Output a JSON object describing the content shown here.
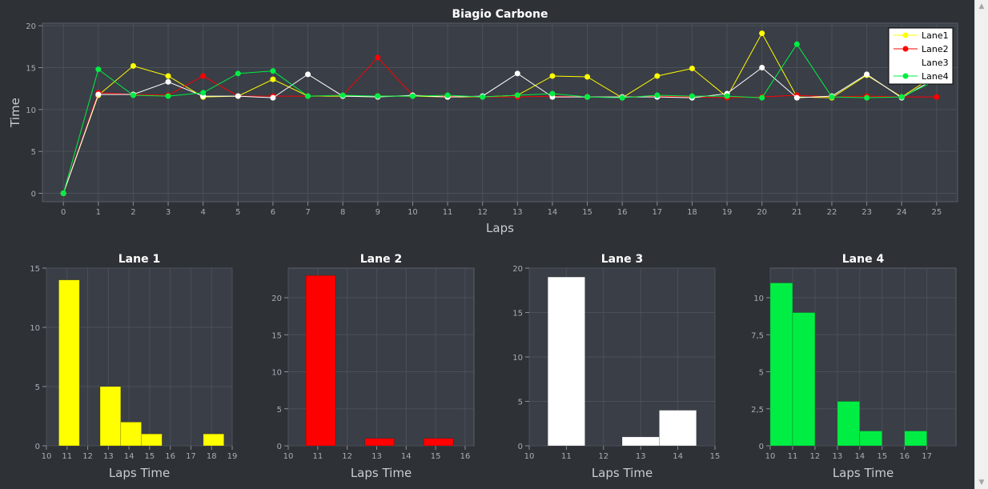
{
  "colors": {
    "lane1": "#ffff00",
    "lane2": "#ff0000",
    "lane3": "#ffffff",
    "lane4": "#00ee44",
    "background": "#2e3136",
    "plot_area": "#3a3e46"
  },
  "main_chart": {
    "title": "Biagio Carbone",
    "xlabel": "Laps",
    "ylabel": "Time",
    "legend": [
      "Lane1",
      "Lane2",
      "Lane3",
      "Lane4"
    ]
  },
  "histograms": [
    {
      "title": "Lane 1",
      "xlabel": "Laps Time"
    },
    {
      "title": "Lane 2",
      "xlabel": "Laps Time"
    },
    {
      "title": "Lane 3",
      "xlabel": "Laps Time"
    },
    {
      "title": "Lane 4",
      "xlabel": "Laps Time"
    }
  ],
  "chart_data": [
    {
      "type": "line",
      "title": "Biagio Carbone",
      "xlabel": "Laps",
      "ylabel": "Time",
      "xlim": [
        -0.6,
        25.6
      ],
      "ylim": [
        -1,
        20.3
      ],
      "x_ticks": [
        "0",
        "1",
        "2",
        "3",
        "4",
        "5",
        "6",
        "7",
        "8",
        "9",
        "10",
        "11",
        "12",
        "13",
        "14",
        "15",
        "16",
        "17",
        "18",
        "19",
        "20",
        "21",
        "22",
        "23",
        "24",
        "25"
      ],
      "y_ticks": [
        "0",
        "5",
        "10",
        "15",
        "20"
      ],
      "grid": true,
      "legend_position": "top-right",
      "series": [
        {
          "name": "Lane1",
          "color": "#ffff00",
          "x": [
            0,
            1,
            2,
            3,
            4,
            5,
            6,
            7,
            8,
            9,
            10,
            11,
            12,
            13,
            14,
            15,
            16,
            17,
            18,
            19,
            20,
            21,
            22,
            23,
            24,
            25
          ],
          "y": [
            0,
            11.7,
            15.2,
            14.0,
            11.5,
            11.6,
            13.6,
            11.6,
            11.6,
            11.6,
            11.6,
            11.5,
            11.5,
            11.7,
            14.0,
            13.9,
            11.4,
            14.0,
            14.9,
            11.5,
            19.1,
            11.5,
            11.4,
            14.1,
            11.5,
            14.2
          ]
        },
        {
          "name": "Lane2",
          "color": "#ff0000",
          "x": [
            0,
            1,
            2,
            3,
            4,
            5,
            6,
            7,
            8,
            9,
            10,
            11,
            12,
            13,
            14,
            15,
            16,
            17,
            18,
            19,
            20,
            21,
            22,
            23,
            24,
            25
          ],
          "y": [
            0,
            12.0,
            11.8,
            11.7,
            14.0,
            11.6,
            11.6,
            11.6,
            11.7,
            16.2,
            11.7,
            11.6,
            11.5,
            11.5,
            11.6,
            11.5,
            11.5,
            11.6,
            11.5,
            11.4,
            11.5,
            11.7,
            11.5,
            11.6,
            11.5,
            11.5
          ]
        },
        {
          "name": "Lane3",
          "color": "#ffffff",
          "x": [
            0,
            1,
            2,
            3,
            4,
            5,
            6,
            7,
            8,
            9,
            10,
            11,
            12,
            13,
            14,
            15,
            16,
            17,
            18,
            19,
            20,
            21,
            22,
            23,
            24,
            25
          ],
          "y": [
            0,
            11.8,
            11.8,
            13.3,
            11.6,
            11.6,
            11.4,
            14.2,
            11.6,
            11.5,
            11.7,
            11.5,
            11.6,
            14.3,
            11.5,
            11.5,
            11.5,
            11.5,
            11.4,
            11.9,
            15.0,
            11.4,
            11.6,
            14.2,
            11.4,
            13.8
          ]
        },
        {
          "name": "Lane4",
          "color": "#00ee44",
          "x": [
            0,
            1,
            2,
            3,
            4,
            5,
            6,
            7,
            8,
            9,
            10,
            11,
            12,
            13,
            14,
            15,
            16,
            17,
            18,
            19,
            20,
            21,
            22,
            23,
            24,
            25
          ],
          "y": [
            0,
            14.8,
            11.7,
            11.6,
            12.0,
            14.3,
            14.6,
            11.6,
            11.7,
            11.6,
            11.6,
            11.7,
            11.5,
            11.7,
            11.9,
            11.5,
            11.4,
            11.7,
            11.6,
            11.6,
            11.4,
            17.8,
            11.5,
            11.4,
            11.5,
            13.5
          ]
        }
      ]
    },
    {
      "type": "bar",
      "title": "Lane 1",
      "xlabel": "Laps Time",
      "xlim": [
        10,
        19
      ],
      "ylim": [
        0,
        15
      ],
      "x_ticks": [
        "10",
        "11",
        "12",
        "13",
        "14",
        "15",
        "16",
        "17",
        "18",
        "19"
      ],
      "y_ticks": [
        "0",
        "5",
        "10",
        "15"
      ],
      "color": "#ffff00",
      "bins": [
        {
          "x0": 10.6,
          "x1": 11.6,
          "value": 14
        },
        {
          "x0": 12.6,
          "x1": 13.6,
          "value": 5
        },
        {
          "x0": 13.6,
          "x1": 14.6,
          "value": 2
        },
        {
          "x0": 14.6,
          "x1": 15.6,
          "value": 1
        },
        {
          "x0": 17.6,
          "x1": 18.6,
          "value": 1
        }
      ]
    },
    {
      "type": "bar",
      "title": "Lane 2",
      "xlabel": "Laps Time",
      "xlim": [
        10,
        16.3
      ],
      "ylim": [
        0,
        24
      ],
      "x_ticks": [
        "10",
        "11",
        "12",
        "13",
        "14",
        "15",
        "16"
      ],
      "y_ticks": [
        "0",
        "5",
        "10",
        "15",
        "20"
      ],
      "color": "#ff0000",
      "bins": [
        {
          "x0": 10.6,
          "x1": 11.6,
          "value": 23
        },
        {
          "x0": 12.6,
          "x1": 13.6,
          "value": 1
        },
        {
          "x0": 14.6,
          "x1": 15.6,
          "value": 1
        }
      ]
    },
    {
      "type": "bar",
      "title": "Lane 3",
      "xlabel": "Laps Time",
      "xlim": [
        10,
        15
      ],
      "ylim": [
        0,
        20
      ],
      "x_ticks": [
        "10",
        "11",
        "12",
        "13",
        "14",
        "15"
      ],
      "y_ticks": [
        "0",
        "5",
        "10",
        "15",
        "20"
      ],
      "color": "#ffffff",
      "bins": [
        {
          "x0": 10.5,
          "x1": 11.5,
          "value": 19
        },
        {
          "x0": 12.5,
          "x1": 13.5,
          "value": 1
        },
        {
          "x0": 13.5,
          "x1": 14.5,
          "value": 4
        }
      ]
    },
    {
      "type": "bar",
      "title": "Lane 4",
      "xlabel": "Laps Time",
      "xlim": [
        10,
        18.3
      ],
      "ylim": [
        0,
        12
      ],
      "x_ticks": [
        "10",
        "11",
        "12",
        "13",
        "14",
        "15",
        "16",
        "17"
      ],
      "y_ticks": [
        "0",
        "2,5",
        "5",
        "7,5",
        "10"
      ],
      "color": "#00ee44",
      "bins": [
        {
          "x0": 10.0,
          "x1": 11.0,
          "value": 11
        },
        {
          "x0": 11.0,
          "x1": 12.0,
          "value": 9
        },
        {
          "x0": 13.0,
          "x1": 14.0,
          "value": 3
        },
        {
          "x0": 14.0,
          "x1": 15.0,
          "value": 1
        },
        {
          "x0": 16.0,
          "x1": 17.0,
          "value": 1
        }
      ]
    }
  ]
}
